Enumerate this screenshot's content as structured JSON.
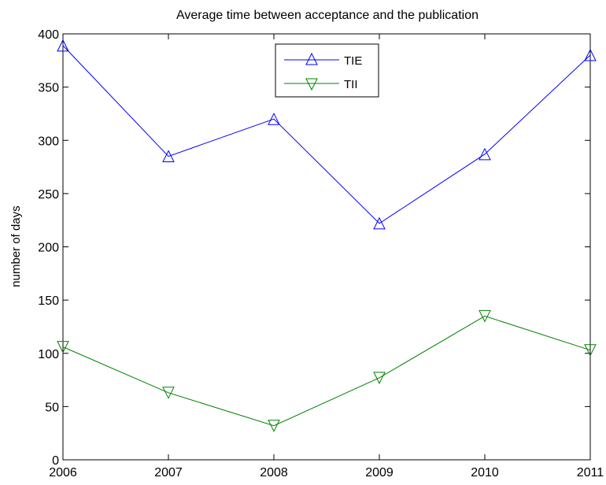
{
  "chart_data": {
    "type": "line",
    "title": "Average time between acceptance and the publication",
    "xlabel": "",
    "ylabel": "number of days",
    "x": [
      2006,
      2007,
      2008,
      2009,
      2010,
      2011
    ],
    "xlim": [
      2006,
      2011
    ],
    "ylim": [
      0,
      400
    ],
    "x_ticks": [
      "2006",
      "2007",
      "2008",
      "2009",
      "2010",
      "2011"
    ],
    "y_ticks": [
      "0",
      "50",
      "100",
      "150",
      "200",
      "250",
      "300",
      "350",
      "400"
    ],
    "grid": false,
    "legend_position": "top-center",
    "series": [
      {
        "name": "TIE",
        "values": [
          389,
          285,
          320,
          222,
          287,
          380
        ],
        "color": "#0000ff",
        "marker": "triangle-up"
      },
      {
        "name": "TII",
        "values": [
          106,
          63,
          32,
          77,
          135,
          103
        ],
        "color": "#008000",
        "marker": "triangle-down"
      }
    ]
  }
}
